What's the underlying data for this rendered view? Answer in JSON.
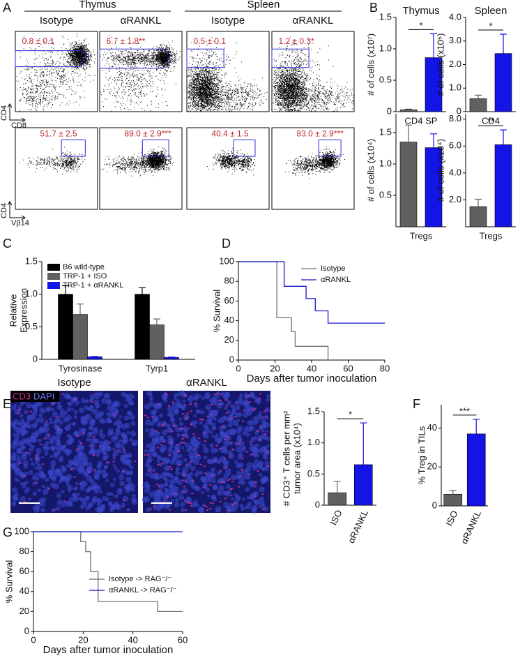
{
  "panel_labels": [
    "A",
    "B",
    "C",
    "D",
    "E",
    "F",
    "G"
  ],
  "flow": {
    "groups": [
      "Thymus",
      "Spleen"
    ],
    "columns": [
      "Isotype",
      "αRANKL",
      "Isotype",
      "αRANKL"
    ],
    "rows": [
      {
        "y_label": "CD4",
        "x_label": "CD8",
        "gates": [
          "0.8 ± 0.1",
          "6.7 ± 1.8**",
          "0.5 ± 0.1",
          "1.2 ± 0.3*"
        ]
      },
      {
        "y_label": "CD4",
        "x_label": "Vβ14",
        "gates": [
          "51.7 ± 2.5",
          "89.0 ± 2.9***",
          "40.4 ± 1.5",
          "83.0 ± 2.9***"
        ]
      }
    ]
  },
  "images": {
    "titles": [
      "Isotype",
      "αRANKL"
    ],
    "stain_labels": [
      "CD3",
      "DAPI"
    ]
  },
  "chart_data": [
    {
      "type": "bar",
      "title": "Thymus",
      "ylabel": [
        "# of cells (x10⁷)"
      ],
      "xlabel": "CD4 SP",
      "series": [
        {
          "colors": [
            "#606060",
            "#1414e6"
          ],
          "values": [
            0.03,
            0.86
          ],
          "errors": [
            0.01,
            0.38
          ]
        }
      ],
      "ylim": [
        0,
        1.5
      ],
      "yticks": [
        0,
        0.5,
        {
          "value": 1,
          "label": "1.0"
        },
        1.5
      ],
      "annotation": "*"
    },
    {
      "type": "bar",
      "title": "Spleen",
      "ylabel": [
        "# of cells (x10⁵)"
      ],
      "xlabel": "CD4",
      "series": [
        {
          "colors": [
            "#606060",
            "#1414e6"
          ],
          "values": [
            0.55,
            2.47
          ],
          "errors": [
            0.15,
            0.82
          ]
        }
      ],
      "ylim": [
        0,
        4
      ],
      "yticks": [
        0,
        {
          "value": 1,
          "label": "1.0"
        },
        {
          "value": 2,
          "label": "2.0"
        },
        {
          "value": 3,
          "label": "3.0"
        },
        {
          "value": 4,
          "label": "4.0"
        }
      ],
      "annotation": "*"
    },
    {
      "type": "bar",
      "ylabel": [
        "# of cells (x10⁴)"
      ],
      "xlabel": "Tregs",
      "series": [
        {
          "colors": [
            "#606060",
            "#1414e6"
          ],
          "values": [
            1.35,
            1.26
          ],
          "errors": [
            0.27,
            0.22
          ]
        }
      ],
      "ylim": [
        0,
        1.8
      ],
      "yticks": [
        0.5,
        {
          "value": 1,
          "label": "1.0"
        },
        1.5
      ]
    },
    {
      "type": "bar",
      "ylabel": [
        "# of cells (x10⁴)"
      ],
      "xlabel": "Tregs",
      "series": [
        {
          "colors": [
            "#606060",
            "#1414e6"
          ],
          "values": [
            1.5,
            6.1
          ],
          "errors": [
            0.55,
            1.1
          ]
        }
      ],
      "ylim": [
        0,
        8.4
      ],
      "yticks": [
        {
          "value": 2,
          "label": "2.0"
        },
        {
          "value": 4,
          "label": "4.0"
        },
        {
          "value": 6,
          "label": "6.0"
        },
        {
          "value": 8,
          "label": "8.0"
        }
      ],
      "annotation": "**"
    },
    {
      "type": "bar",
      "ylabel": [
        "Relative",
        "Expression"
      ],
      "categories": [
        "Tyrosinase",
        "Tyrp1"
      ],
      "series": [
        {
          "name": "B6 wild-type",
          "color": "#000000",
          "values": [
            1.0,
            1.0
          ],
          "errors": [
            0.13,
            0.1
          ]
        },
        {
          "name": "TRP-1 + ISO",
          "color": "#606060",
          "values": [
            0.69,
            0.53
          ],
          "errors": [
            0.16,
            0.09
          ]
        },
        {
          "name": "TRP-1 + αRANKL",
          "color": "#1414e6",
          "values": [
            0.04,
            0.03
          ],
          "errors": [
            0.005,
            0.005
          ]
        }
      ],
      "ylim": [
        0,
        1.5
      ],
      "yticks": [
        0,
        0.5,
        {
          "value": 1,
          "label": "1.0"
        },
        1.5
      ],
      "legend": "top-left"
    },
    {
      "type": "line",
      "ylabel": [
        "% Survival"
      ],
      "xlabel": "Days after tumor inoculation",
      "series": [
        {
          "name": "Isotype",
          "color": "#707070",
          "x": [
            0,
            21,
            21,
            29,
            29,
            31,
            31,
            49,
            49
          ],
          "values": [
            100,
            100,
            43,
            43,
            29,
            29,
            14,
            14,
            0
          ]
        },
        {
          "name": "αRANKL",
          "color": "#1414c8",
          "x": [
            0,
            25,
            25,
            37,
            37,
            42,
            42,
            49,
            49,
            80
          ],
          "values": [
            100,
            100,
            75,
            75,
            62.5,
            62.5,
            50,
            50,
            37.5,
            37.5
          ]
        }
      ],
      "xlim": [
        0,
        80
      ],
      "xticks": [
        0,
        20,
        40,
        60,
        80
      ],
      "ylim": [
        0,
        100
      ],
      "yticks": [
        0,
        20,
        40,
        60,
        80,
        100
      ],
      "legend": "top-right"
    },
    {
      "type": "bar",
      "ylabel": [
        "# CD3⁺ T cells per mm²",
        "tumor area (x10⁴)"
      ],
      "categories": [
        "ISO",
        "αRANKL"
      ],
      "series": [
        {
          "colors": [
            "#606060",
            "#1414e6"
          ],
          "values": [
            0.2,
            0.65
          ],
          "errors": [
            0.18,
            0.67
          ]
        }
      ],
      "ylim": [
        0,
        1.5
      ],
      "yticks": [
        0,
        0.5,
        {
          "value": 1,
          "label": "1.0"
        },
        1.5
      ],
      "annotation": "*"
    },
    {
      "type": "bar",
      "ylabel": [
        "% Treg in TILs"
      ],
      "categories": [
        "ISO",
        "αRANKL"
      ],
      "series": [
        {
          "colors": [
            "#606060",
            "#1414e6"
          ],
          "values": [
            6,
            37
          ],
          "errors": [
            2,
            7.5
          ]
        }
      ],
      "ylim": [
        0,
        52
      ],
      "yticks": [
        0,
        20,
        40
      ],
      "annotation": "***"
    },
    {
      "type": "line",
      "ylabel": [
        "% Survival"
      ],
      "xlabel": "Days after tumor inoculation",
      "series": [
        {
          "name": "Isotype -> RAG⁻/⁻",
          "color": "#707070",
          "x": [
            0,
            19,
            19,
            21,
            21,
            23,
            23,
            26,
            26,
            50,
            50,
            60
          ],
          "values": [
            100,
            100,
            90,
            90,
            80,
            80,
            60,
            60,
            30,
            30,
            20,
            20
          ]
        },
        {
          "name": "αRANKL -> RAG⁻/⁻",
          "color": "#1414c8",
          "x": [
            0,
            60
          ],
          "values": [
            100,
            100
          ]
        }
      ],
      "xlim": [
        0,
        60
      ],
      "xticks": [
        0,
        20,
        40,
        60
      ],
      "ylim": [
        0,
        100
      ],
      "yticks": [
        0,
        20,
        40,
        60,
        80,
        100
      ],
      "legend": "center"
    }
  ]
}
